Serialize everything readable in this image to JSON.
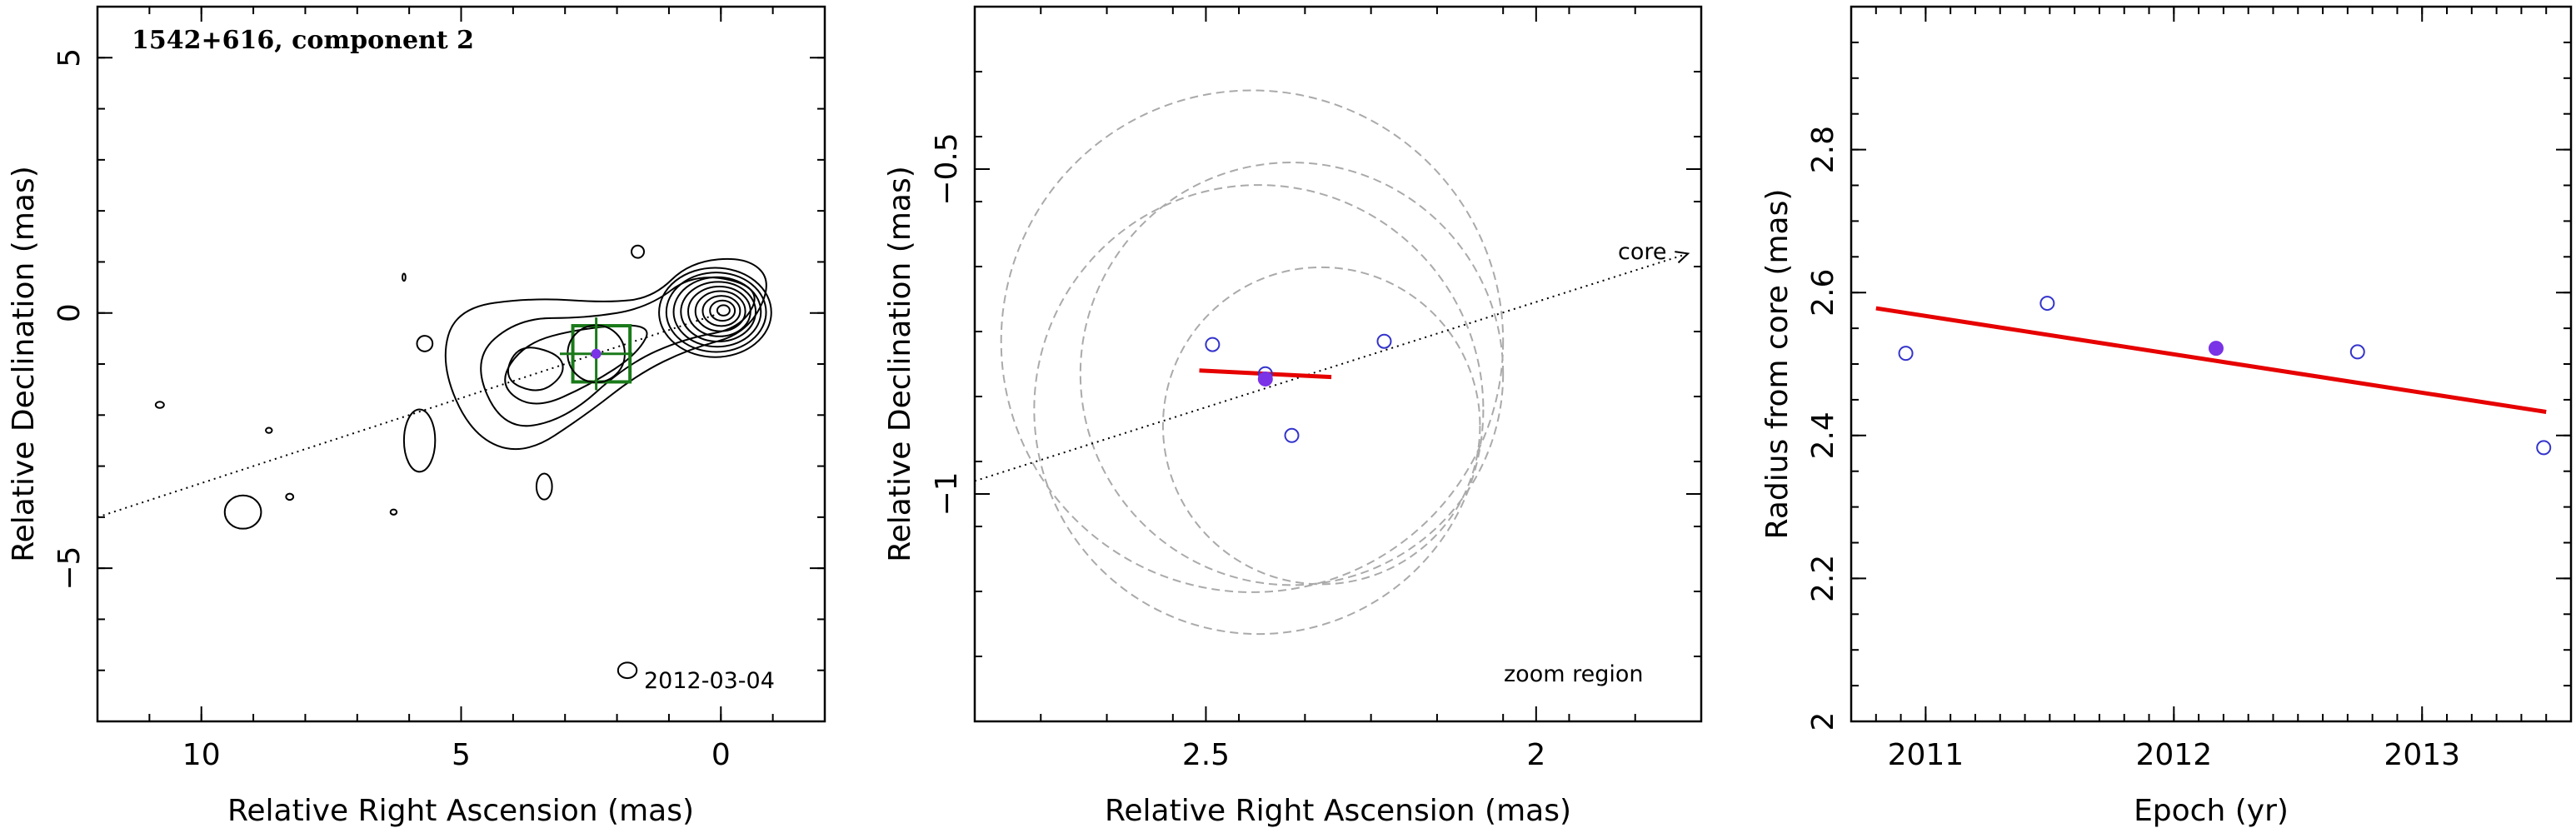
{
  "chart_data": [
    {
      "type": "contour-map",
      "title": "1542+616, component 2",
      "annotation": "2012-03-04",
      "xlabel": "Relative Right Ascension (mas)",
      "ylabel": "Relative Declination (mas)",
      "xlim": [
        12,
        -2
      ],
      "ylim": [
        -8,
        6
      ],
      "xticks": [
        10,
        5,
        0
      ],
      "yticks": [
        5,
        0,
        -5
      ],
      "contour_color": "#000000",
      "box_color": "#1a7a1a",
      "component_marker": {
        "x": 2.4,
        "y": -0.8,
        "color": "#7a33e6"
      },
      "zoom_box": {
        "x_range": [
          1.75,
          2.85
        ],
        "y_range": [
          -1.35,
          -0.25
        ]
      },
      "core_direction_line": {
        "from": [
          12,
          -4.0
        ],
        "to": [
          0,
          0
        ]
      }
    },
    {
      "type": "scatter",
      "annotation_core": "core",
      "annotation_zoom": "zoom region",
      "xlabel": "Relative Right Ascension (mas)",
      "ylabel": "Relative Declination (mas)",
      "xlim": [
        2.85,
        1.75
      ],
      "ylim": [
        -1.35,
        -0.25
      ],
      "xticks": [
        2.5,
        2
      ],
      "yticks": [
        -0.5,
        -1
      ],
      "points_open": [
        {
          "x": 2.49,
          "y": -0.77
        },
        {
          "x": 2.23,
          "y": -0.765
        },
        {
          "x": 2.41,
          "y": -0.815
        },
        {
          "x": 2.37,
          "y": -0.91
        }
      ],
      "point_filled": {
        "x": 2.41,
        "y": -0.823
      },
      "fit_segment": {
        "from": [
          2.51,
          -0.81
        ],
        "to": [
          2.31,
          -0.82
        ]
      },
      "circles": [
        {
          "x": 2.42,
          "y": -0.87,
          "r": 0.34
        },
        {
          "x": 2.37,
          "y": -0.815,
          "r": 0.32
        },
        {
          "x": 2.43,
          "y": -0.765,
          "r": 0.38
        },
        {
          "x": 2.325,
          "y": -0.895,
          "r": 0.24
        }
      ],
      "core_direction_line": {
        "from": [
          2.85,
          -0.98
        ],
        "to": [
          1.77,
          -0.63
        ]
      },
      "open_color": "#3333cc",
      "filled_color": "#7a33e6",
      "fit_color": "#e60000",
      "circle_color": "#aaaaaa"
    },
    {
      "type": "scatter",
      "xlabel": "Epoch (yr)",
      "ylabel": "Radius from core (mas)",
      "xlim": [
        2010.7,
        2013.6
      ],
      "ylim": [
        2.0,
        3.0
      ],
      "xticks": [
        2011,
        2012,
        2013
      ],
      "yticks": [
        2,
        2.2,
        2.4,
        2.6,
        2.8
      ],
      "points_open": [
        {
          "x": 2010.92,
          "y": 2.515
        },
        {
          "x": 2011.49,
          "y": 2.585
        },
        {
          "x": 2012.74,
          "y": 2.517
        },
        {
          "x": 2013.49,
          "y": 2.383
        }
      ],
      "point_filled": {
        "x": 2012.17,
        "y": 2.522
      },
      "fit_line": {
        "x": [
          2010.8,
          2013.5
        ],
        "y": [
          2.578,
          2.433
        ]
      },
      "open_color": "#3333cc",
      "filled_color": "#7a33e6",
      "fit_color": "#e60000"
    }
  ]
}
